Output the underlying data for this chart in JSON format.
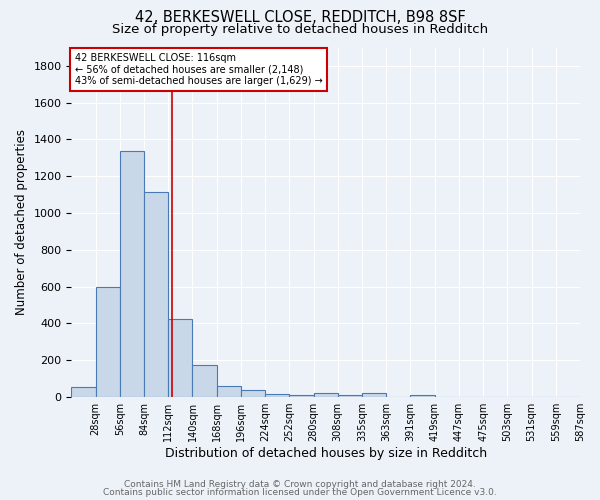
{
  "title": "42, BERKESWELL CLOSE, REDDITCH, B98 8SF",
  "subtitle": "Size of property relative to detached houses in Redditch",
  "xlabel": "Distribution of detached houses by size in Redditch",
  "ylabel": "Number of detached properties",
  "footer_line1": "Contains HM Land Registry data © Crown copyright and database right 2024.",
  "footer_line2": "Contains public sector information licensed under the Open Government Licence v3.0.",
  "bar_labels": [
    "28sqm",
    "56sqm",
    "84sqm",
    "112sqm",
    "140sqm",
    "168sqm",
    "196sqm",
    "224sqm",
    "252sqm",
    "280sqm",
    "308sqm",
    "335sqm",
    "363sqm",
    "391sqm",
    "419sqm",
    "447sqm",
    "475sqm",
    "503sqm",
    "531sqm",
    "559sqm",
    "587sqm"
  ],
  "bar_values": [
    57,
    600,
    1340,
    1115,
    425,
    175,
    60,
    38,
    18,
    10,
    22,
    10,
    22,
    0,
    10,
    0,
    0,
    0,
    0,
    0,
    0
  ],
  "bar_color": "#c8d8e8",
  "bar_edge_color": "#4a7ab5",
  "bar_linewidth": 0.8,
  "vline_x": 116,
  "vline_color": "#cc0000",
  "vline_linewidth": 1.2,
  "annotation_text": "42 BERKESWELL CLOSE: 116sqm\n← 56% of detached houses are smaller (2,148)\n43% of semi-detached houses are larger (1,629) →",
  "annotation_box_color": "#ffffff",
  "annotation_box_edgecolor": "#cc0000",
  "ylim": [
    0,
    1900
  ],
  "bin_width": 28,
  "bg_color": "#edf2f8",
  "grid_color": "#ffffff",
  "title_fontsize": 10.5,
  "subtitle_fontsize": 9.5,
  "xlabel_fontsize": 9,
  "ylabel_fontsize": 8.5,
  "tick_fontsize": 7,
  "footer_fontsize": 6.5,
  "ytick_values": [
    0,
    200,
    400,
    600,
    800,
    1000,
    1200,
    1400,
    1600,
    1800
  ]
}
